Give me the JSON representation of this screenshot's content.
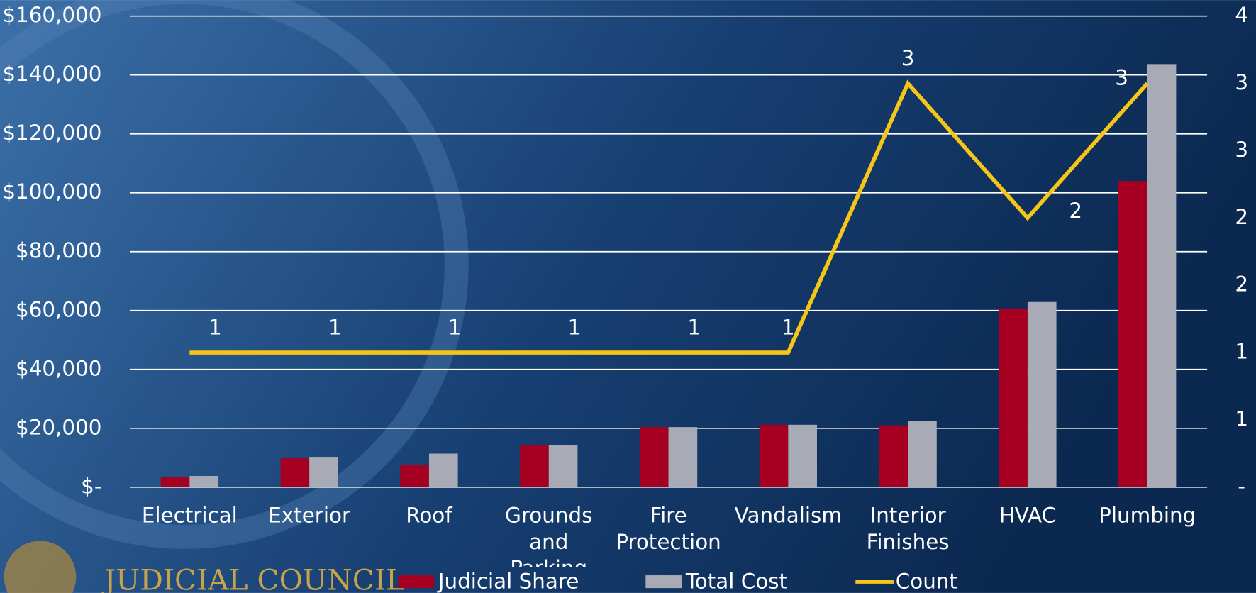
{
  "logo_text": "JUDICIAL COUNCIL",
  "chart_data": {
    "type": "bar",
    "categories": [
      "Electrical",
      "Exterior",
      "Roof",
      "Grounds and Parking",
      "Fire Protection",
      "Vandalism",
      "Interior Finishes",
      "HVAC",
      "Plumbing"
    ],
    "series": [
      {
        "name": "Judicial Share",
        "color": "#a50021",
        "values": [
          3300,
          9800,
          7600,
          14400,
          20400,
          21200,
          21000,
          60700,
          104000
        ]
      },
      {
        "name": "Total Cost",
        "color": "#a8abb5",
        "values": [
          3800,
          10300,
          11400,
          14400,
          20400,
          21200,
          22600,
          62900,
          143700
        ]
      },
      {
        "name": "Count",
        "color": "#f5c518",
        "type": "line",
        "axis": "y2",
        "values": [
          1,
          1,
          1,
          1,
          1,
          1,
          3,
          2,
          3
        ]
      }
    ],
    "ylim": [
      0,
      160000
    ],
    "yticks": [
      {
        "value": 0,
        "label": "$-"
      },
      {
        "value": 20000,
        "label": "$20,000"
      },
      {
        "value": 40000,
        "label": "$40,000"
      },
      {
        "value": 60000,
        "label": "$60,000"
      },
      {
        "value": 80000,
        "label": "$80,000"
      },
      {
        "value": 100000,
        "label": "$100,000"
      },
      {
        "value": 120000,
        "label": "$120,000"
      },
      {
        "value": 140000,
        "label": "$140,000"
      },
      {
        "value": 160000,
        "label": "$160,000"
      }
    ],
    "y2lim": [
      0,
      3.5
    ],
    "y2ticks": [
      {
        "value": 0,
        "label": "-"
      },
      {
        "value": 0.5,
        "label": "1"
      },
      1,
      {
        "value": 1.5,
        "label": "2"
      },
      2,
      {
        "value": 2.5,
        "label": "3"
      },
      3,
      {
        "value": 3.5,
        "label": "4"
      }
    ],
    "grid": true,
    "legend": "bottom"
  }
}
